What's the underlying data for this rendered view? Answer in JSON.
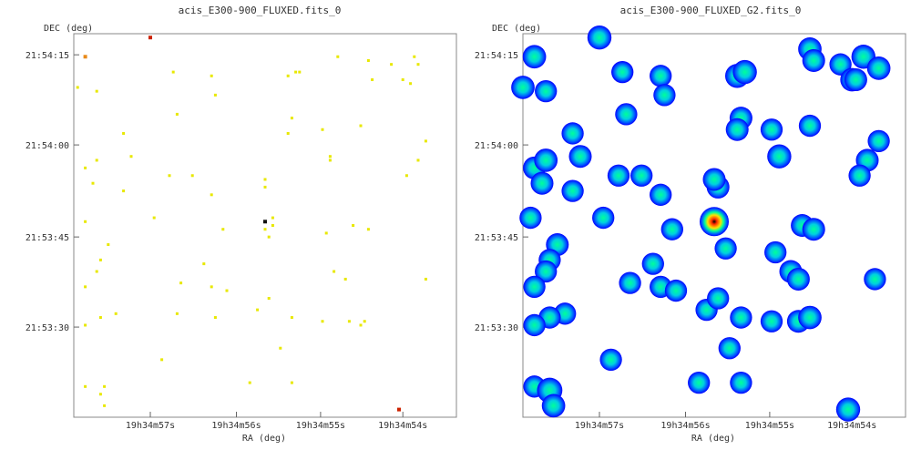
{
  "chart_data": [
    {
      "type": "scatter",
      "title": "acis_E300-900_FLUXED.fits_0",
      "xlabel": "RA (deg)",
      "ylabel": "DEC (deg)",
      "x_ticks": [
        "19h34m57s",
        "19h34m56s",
        "19h34m55s",
        "19h34m54s"
      ],
      "y_ticks": [
        "21:54:15",
        "21:54:00",
        "21:53:45",
        "21:53:30"
      ],
      "xlim": [
        0,
        100
      ],
      "ylim": [
        0,
        100
      ],
      "x_tick_values": [
        20,
        42.5,
        64.5,
        86
      ],
      "y_tick_values": [
        94.5,
        71,
        47,
        23.5
      ],
      "colors": {
        "faint": "#e8e800",
        "medium": "#e88a1a",
        "bright": "#cc2200",
        "dark": "#111111"
      },
      "points": [
        [
          1,
          86,
          "faint"
        ],
        [
          6,
          85,
          "faint"
        ],
        [
          3,
          94,
          "medium"
        ],
        [
          20,
          99,
          "bright"
        ],
        [
          26,
          90,
          "faint"
        ],
        [
          36,
          89,
          "faint"
        ],
        [
          37,
          84,
          "faint"
        ],
        [
          27,
          79,
          "faint"
        ],
        [
          13,
          74,
          "faint"
        ],
        [
          3,
          65,
          "faint"
        ],
        [
          5,
          61,
          "faint"
        ],
        [
          6,
          67,
          "faint"
        ],
        [
          13,
          59,
          "faint"
        ],
        [
          15,
          68,
          "faint"
        ],
        [
          25,
          63,
          "faint"
        ],
        [
          31,
          63,
          "faint"
        ],
        [
          36,
          58,
          "faint"
        ],
        [
          21,
          52,
          "faint"
        ],
        [
          39,
          49,
          "faint"
        ],
        [
          52,
          50,
          "faint"
        ],
        [
          50,
          49,
          "faint"
        ],
        [
          50,
          51,
          "dark"
        ],
        [
          52,
          52,
          "faint"
        ],
        [
          51,
          47,
          "faint"
        ],
        [
          50,
          60,
          "faint"
        ],
        [
          50,
          62,
          "faint"
        ],
        [
          56,
          89,
          "faint"
        ],
        [
          58,
          90,
          "faint"
        ],
        [
          59,
          90,
          "faint"
        ],
        [
          57,
          78,
          "faint"
        ],
        [
          56,
          74,
          "faint"
        ],
        [
          65,
          75,
          "faint"
        ],
        [
          67,
          68,
          "faint"
        ],
        [
          67,
          67,
          "faint"
        ],
        [
          75,
          76,
          "faint"
        ],
        [
          69,
          94,
          "faint"
        ],
        [
          77,
          93,
          "faint"
        ],
        [
          83,
          92,
          "faint"
        ],
        [
          86,
          88,
          "faint"
        ],
        [
          88,
          87,
          "faint"
        ],
        [
          89,
          94,
          "faint"
        ],
        [
          90,
          92,
          "faint"
        ],
        [
          92,
          72,
          "faint"
        ],
        [
          87,
          63,
          "faint"
        ],
        [
          90,
          67,
          "faint"
        ],
        [
          73,
          50,
          "faint"
        ],
        [
          77,
          49,
          "faint"
        ],
        [
          66,
          48,
          "faint"
        ],
        [
          68,
          38,
          "faint"
        ],
        [
          71,
          36,
          "faint"
        ],
        [
          92,
          36,
          "faint"
        ],
        [
          3,
          51,
          "faint"
        ],
        [
          9,
          45,
          "faint"
        ],
        [
          7,
          41,
          "faint"
        ],
        [
          6,
          38,
          "faint"
        ],
        [
          3,
          34,
          "faint"
        ],
        [
          11,
          27,
          "faint"
        ],
        [
          7,
          26,
          "faint"
        ],
        [
          3,
          24,
          "faint"
        ],
        [
          28,
          35,
          "faint"
        ],
        [
          27,
          27,
          "faint"
        ],
        [
          34,
          40,
          "faint"
        ],
        [
          36,
          34,
          "faint"
        ],
        [
          40,
          33,
          "faint"
        ],
        [
          37,
          26,
          "faint"
        ],
        [
          48,
          28,
          "faint"
        ],
        [
          51,
          31,
          "faint"
        ],
        [
          57,
          26,
          "faint"
        ],
        [
          65,
          25,
          "faint"
        ],
        [
          72,
          25,
          "faint"
        ],
        [
          75,
          24,
          "faint"
        ],
        [
          76,
          25,
          "faint"
        ],
        [
          54,
          18,
          "faint"
        ],
        [
          23,
          15,
          "faint"
        ],
        [
          3,
          8,
          "faint"
        ],
        [
          8,
          8,
          "faint"
        ],
        [
          7,
          6,
          "faint"
        ],
        [
          8,
          3,
          "faint"
        ],
        [
          46,
          9,
          "faint"
        ],
        [
          57,
          9,
          "faint"
        ],
        [
          85,
          2,
          "bright"
        ],
        [
          78,
          88,
          "faint"
        ]
      ]
    },
    {
      "type": "heatmap",
      "title": "acis_E300-900_FLUXED_G2.fits_0",
      "xlabel": "RA (deg)",
      "ylabel": "",
      "x_ticks": [
        "19h34m57s",
        "19h34m56s",
        "19h34m55s",
        "19h34m54s"
      ],
      "y_ticks": [
        "21:54:15",
        "21:54:00",
        "21:53:45",
        "21:53:30"
      ],
      "xlim": [
        0,
        100
      ],
      "ylim": [
        0,
        100
      ],
      "x_tick_values": [
        20,
        42.5,
        64.5,
        86
      ],
      "y_tick_values": [
        94.5,
        71,
        47,
        23.5
      ],
      "colors": {
        "edge": "#0000ff",
        "mid": "#00a0ff",
        "core": "#00ff9a",
        "hot": "#ff2a00",
        "peak": "#000000"
      },
      "blobs": [
        [
          3,
          94,
          0.55
        ],
        [
          20,
          99,
          0.6
        ],
        [
          26,
          90,
          0.45
        ],
        [
          36,
          89,
          0.45
        ],
        [
          37,
          84,
          0.45
        ],
        [
          27,
          79,
          0.45
        ],
        [
          13,
          74,
          0.45
        ],
        [
          15,
          68,
          0.5
        ],
        [
          3,
          65,
          0.5
        ],
        [
          6,
          67,
          0.55
        ],
        [
          5,
          61,
          0.5
        ],
        [
          13,
          59,
          0.45
        ],
        [
          25,
          63,
          0.45
        ],
        [
          31,
          63,
          0.45
        ],
        [
          36,
          58,
          0.45
        ],
        [
          51,
          60,
          0.5
        ],
        [
          50,
          62,
          0.5
        ],
        [
          2,
          52,
          0.45
        ],
        [
          21,
          52,
          0.45
        ],
        [
          39,
          49,
          0.45
        ],
        [
          50,
          51,
          1.0
        ],
        [
          53,
          44,
          0.45
        ],
        [
          56,
          89,
          0.6
        ],
        [
          58,
          90,
          0.6
        ],
        [
          57,
          78,
          0.5
        ],
        [
          56,
          75,
          0.5
        ],
        [
          65,
          75,
          0.45
        ],
        [
          67,
          68,
          0.6
        ],
        [
          75,
          76,
          0.45
        ],
        [
          75,
          96,
          0.55
        ],
        [
          76,
          93,
          0.5
        ],
        [
          83,
          92,
          0.45
        ],
        [
          86,
          88,
          0.55
        ],
        [
          89,
          94,
          0.6
        ],
        [
          93,
          72,
          0.45
        ],
        [
          90,
          67,
          0.5
        ],
        [
          88,
          63,
          0.45
        ],
        [
          73,
          50,
          0.5
        ],
        [
          76,
          49,
          0.5
        ],
        [
          66,
          43,
          0.45
        ],
        [
          70,
          38,
          0.5
        ],
        [
          72,
          36,
          0.5
        ],
        [
          92,
          36,
          0.45
        ],
        [
          9,
          45,
          0.5
        ],
        [
          7,
          41,
          0.45
        ],
        [
          6,
          38,
          0.45
        ],
        [
          3,
          34,
          0.45
        ],
        [
          28,
          35,
          0.45
        ],
        [
          34,
          40,
          0.45
        ],
        [
          36,
          34,
          0.45
        ],
        [
          40,
          33,
          0.45
        ],
        [
          48,
          28,
          0.45
        ],
        [
          51,
          31,
          0.45
        ],
        [
          57,
          26,
          0.45
        ],
        [
          65,
          25,
          0.45
        ],
        [
          72,
          25,
          0.5
        ],
        [
          75,
          26,
          0.55
        ],
        [
          11,
          27,
          0.45
        ],
        [
          7,
          26,
          0.45
        ],
        [
          3,
          24,
          0.45
        ],
        [
          54,
          18,
          0.45
        ],
        [
          23,
          15,
          0.45
        ],
        [
          3,
          8,
          0.45
        ],
        [
          7,
          7,
          0.7
        ],
        [
          8,
          3,
          0.55
        ],
        [
          46,
          9,
          0.45
        ],
        [
          57,
          9,
          0.45
        ],
        [
          85,
          2,
          0.6
        ],
        [
          0,
          86,
          0.55
        ],
        [
          6,
          85,
          0.45
        ],
        [
          87,
          88,
          0.5
        ],
        [
          93,
          91,
          0.55
        ],
        [
          26,
          90,
          0.4
        ]
      ]
    }
  ]
}
